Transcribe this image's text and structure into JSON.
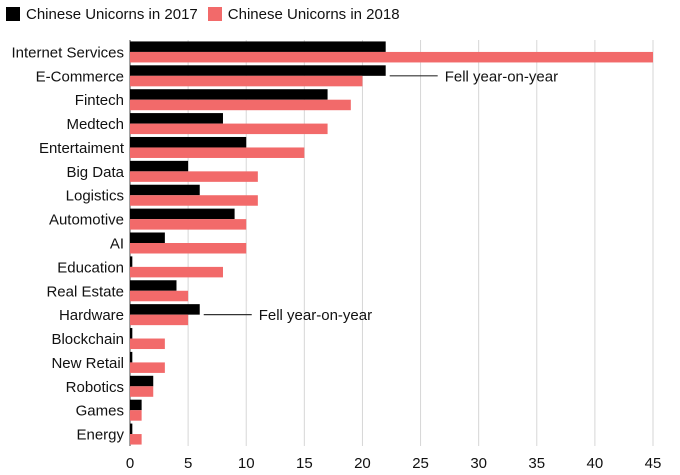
{
  "chart_data": {
    "type": "bar",
    "orientation": "horizontal",
    "categories": [
      "Internet Services",
      "E-Commerce",
      "Fintech",
      "Medtech",
      "Entertaiment",
      "Big Data",
      "Logistics",
      "Automotive",
      "AI",
      "Education",
      "Real Estate",
      "Hardware",
      "Blockchain",
      "New Retail",
      "Robotics",
      "Games",
      "Energy"
    ],
    "series": [
      {
        "name": "Chinese Unicorns in 2017",
        "color": "#000000",
        "values": [
          22,
          22,
          17,
          8,
          10,
          5,
          6,
          9,
          3,
          0.2,
          4,
          6,
          0.2,
          0.2,
          2,
          1,
          0.2
        ]
      },
      {
        "name": "Chinese Unicorns in 2018",
        "color": "#f26a6a",
        "values": [
          45,
          20,
          19,
          17,
          15,
          11,
          11,
          10,
          10,
          8,
          5,
          5,
          3,
          3,
          2,
          1,
          1
        ]
      }
    ],
    "xlim": [
      0,
      45
    ],
    "xticks": [
      0,
      5,
      10,
      15,
      20,
      25,
      30,
      35,
      40,
      45
    ],
    "grid": "vertical",
    "legend": "top-left",
    "annotations": [
      {
        "text": "Fell year-on-year",
        "category": "E-Commerce"
      },
      {
        "text": "Fell year-on-year",
        "category": "Hardware"
      }
    ]
  }
}
